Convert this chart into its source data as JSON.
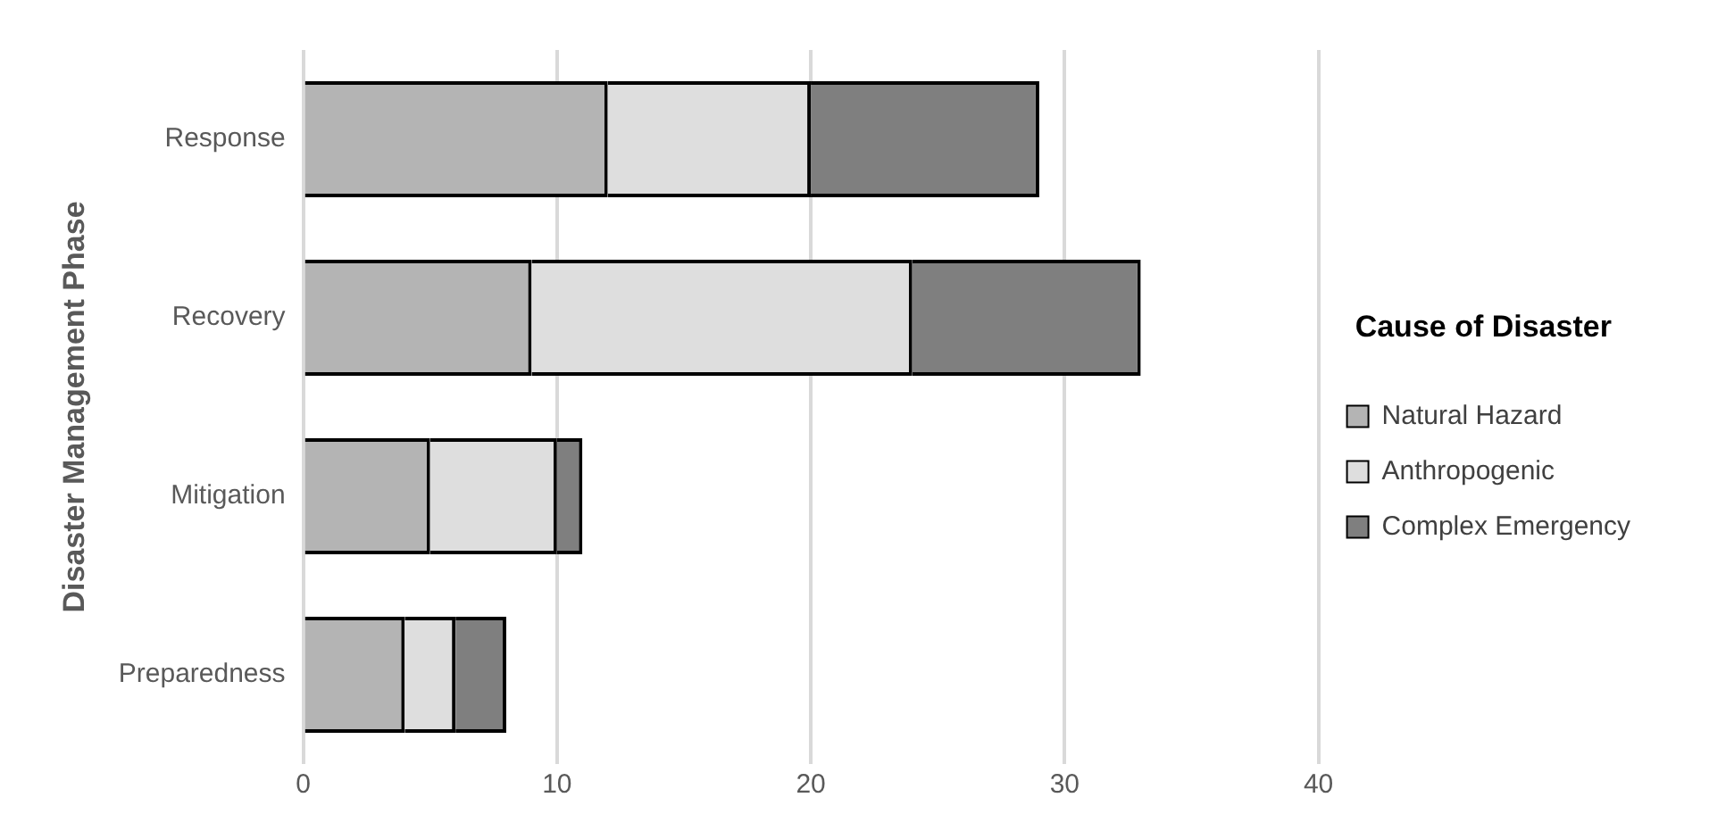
{
  "chart_data": {
    "type": "bar",
    "orientation": "horizontal",
    "stacked": true,
    "ylabel": "Disaster Management Phase",
    "legend_title": "Cause of Disaster",
    "categories": [
      "Response",
      "Recovery",
      "Mitigation",
      "Preparedness"
    ],
    "series": [
      {
        "name": "Natural Hazard",
        "color": "#b4b4b4",
        "values": [
          12,
          9,
          5,
          4
        ]
      },
      {
        "name": "Anthropogenic",
        "color": "#dedede",
        "values": [
          8,
          15,
          5,
          2
        ]
      },
      {
        "name": "Complex Emergency",
        "color": "#7f7f7f",
        "values": [
          9,
          9,
          1,
          2
        ]
      }
    ],
    "xlim": [
      0,
      40
    ],
    "xticks": [
      0,
      10,
      20,
      30,
      40
    ],
    "grid": "x",
    "legend": "right"
  }
}
